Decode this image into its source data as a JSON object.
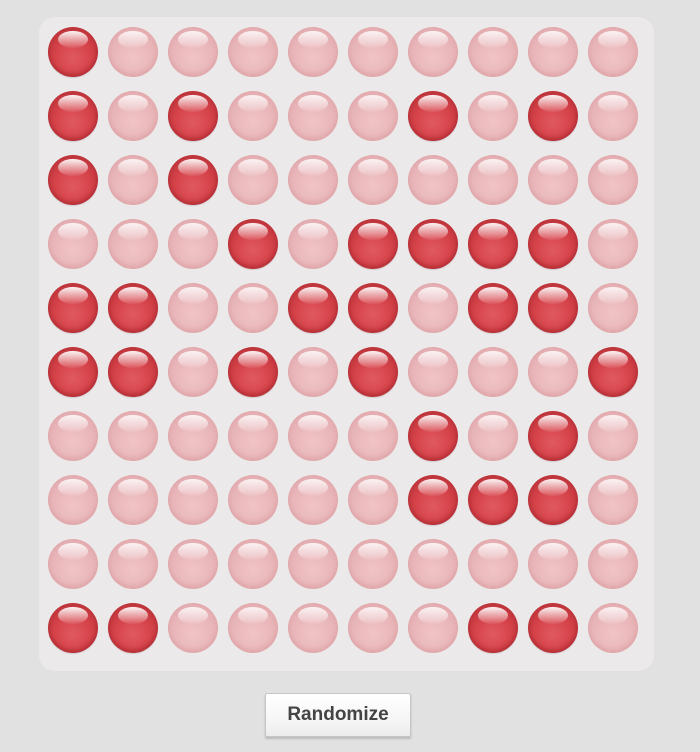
{
  "grid": {
    "rows": 10,
    "columns": 10,
    "cells": [
      [
        1,
        0,
        0,
        0,
        0,
        0,
        0,
        0,
        0,
        0
      ],
      [
        1,
        0,
        1,
        0,
        0,
        0,
        1,
        0,
        1,
        0
      ],
      [
        1,
        0,
        1,
        0,
        0,
        0,
        0,
        0,
        0,
        0
      ],
      [
        0,
        0,
        0,
        1,
        0,
        1,
        1,
        1,
        1,
        0
      ],
      [
        1,
        1,
        0,
        0,
        1,
        1,
        0,
        1,
        1,
        0
      ],
      [
        1,
        1,
        0,
        1,
        0,
        1,
        0,
        0,
        0,
        1
      ],
      [
        0,
        0,
        0,
        0,
        0,
        0,
        1,
        0,
        1,
        0
      ],
      [
        0,
        0,
        0,
        0,
        0,
        0,
        1,
        1,
        1,
        0
      ],
      [
        0,
        0,
        0,
        0,
        0,
        0,
        0,
        0,
        0,
        0
      ],
      [
        1,
        1,
        0,
        0,
        0,
        0,
        0,
        1,
        1,
        0
      ]
    ],
    "on_color": "#d6434a",
    "off_color": "#e9b6b9"
  },
  "controls": {
    "randomize_label": "Randomize"
  }
}
